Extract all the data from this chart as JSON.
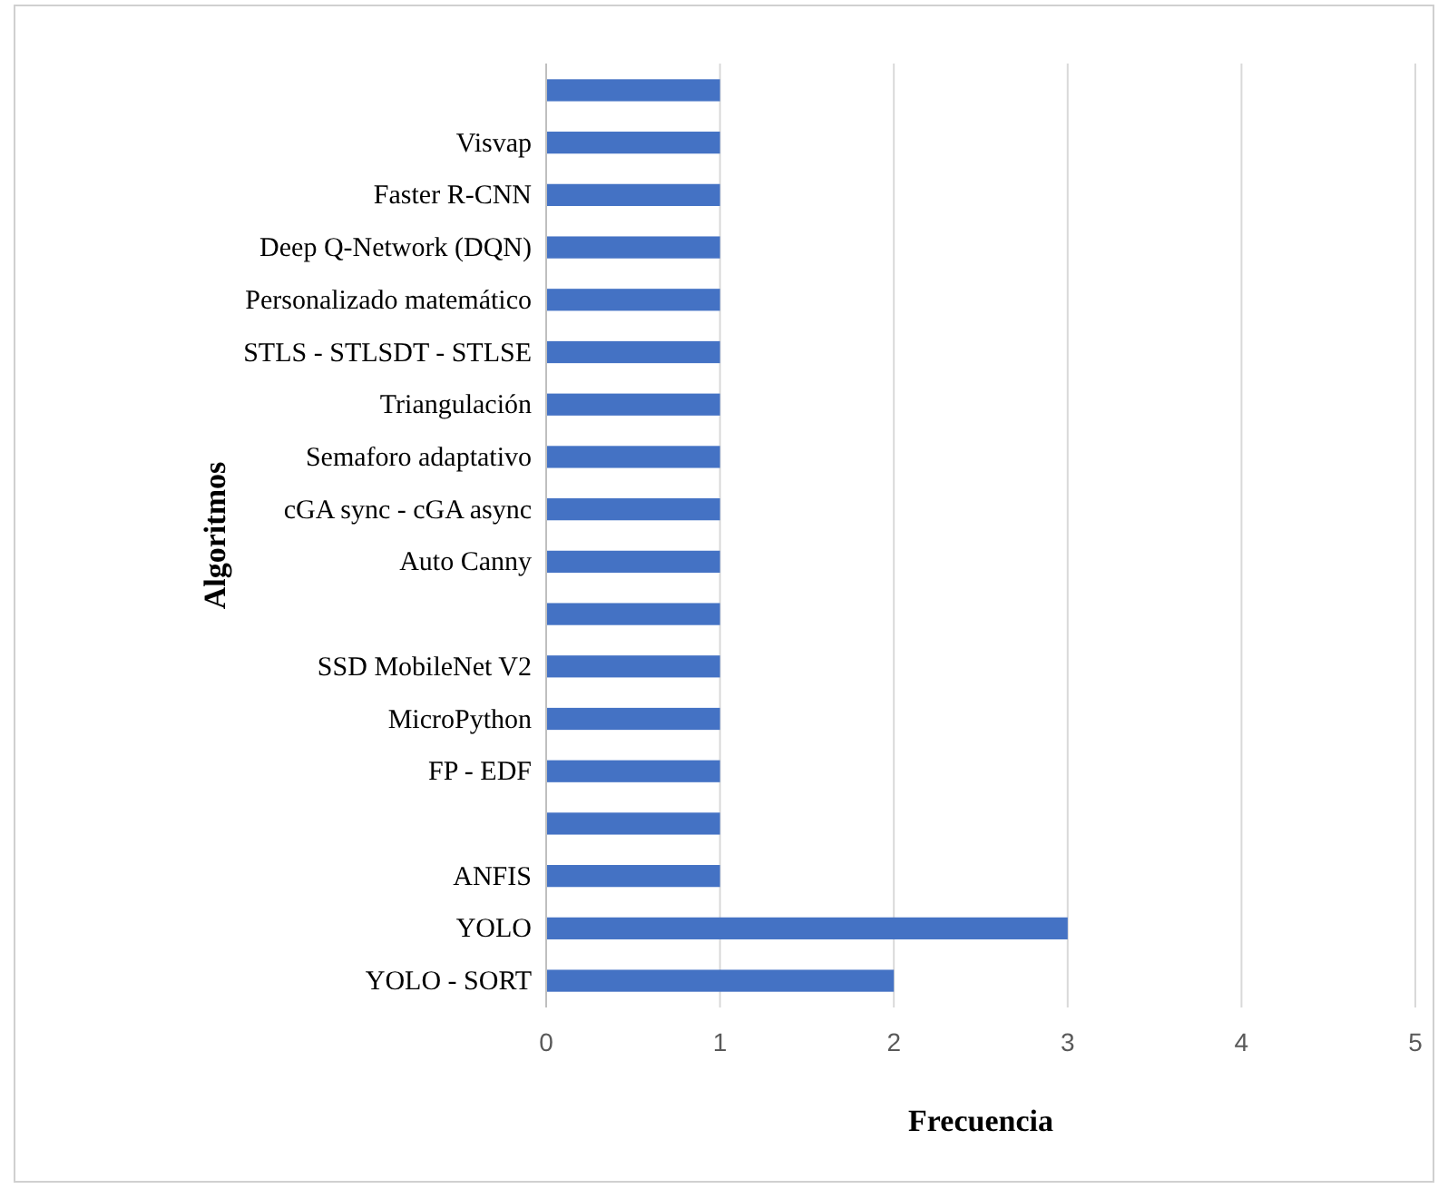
{
  "chart_data": {
    "type": "bar",
    "orientation": "horizontal",
    "categories": [
      null,
      "Visvap",
      "Faster R-CNN",
      "Deep Q-Network (DQN)",
      "Personalizado matemático",
      "STLS - STLSDT - STLSE",
      "Triangulación",
      "Semaforo adaptativo",
      "cGA sync - cGA async",
      "Auto Canny",
      null,
      "SSD MobileNet V2",
      "MicroPython",
      "FP - EDF",
      null,
      "ANFIS",
      "YOLO",
      "YOLO - SORT"
    ],
    "values": [
      1,
      1,
      1,
      1,
      1,
      1,
      1,
      1,
      1,
      1,
      1,
      1,
      1,
      1,
      1,
      1,
      3,
      2
    ],
    "color": "#4472c4",
    "xlim": [
      0,
      5
    ],
    "xticks": [
      0,
      1,
      2,
      3,
      4,
      5
    ],
    "grid": "x",
    "xlabel": "Frecuencia",
    "ylabel": "Algoritmos"
  }
}
